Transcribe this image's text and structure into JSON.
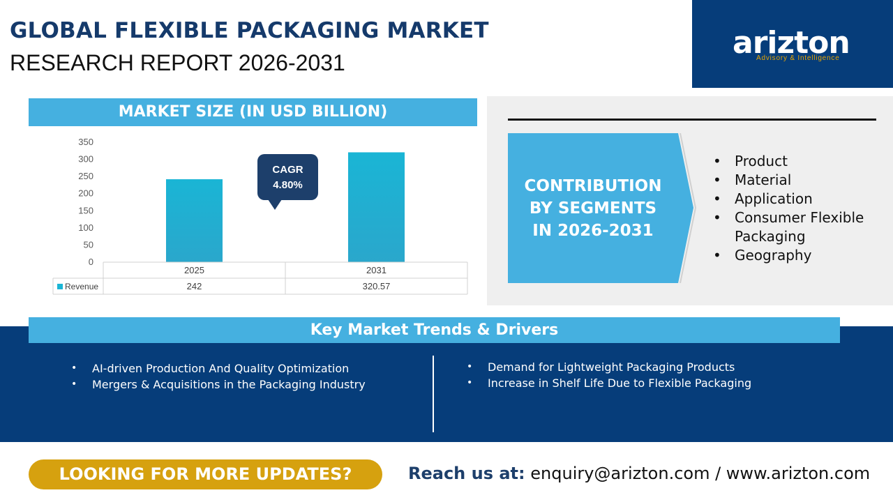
{
  "header": {
    "title_line1": "GLOBAL FLEXIBLE PACKAGING MARKET",
    "title_line2": "RESEARCH REPORT 2026-2031"
  },
  "logo": {
    "name": "arizton",
    "tagline": "Advisory & Intelligence"
  },
  "market_size": {
    "heading": "MARKET SIZE (IN USD BILLION)",
    "cagr_label": "CAGR",
    "cagr_value": "4.80%"
  },
  "chart_data": {
    "type": "bar",
    "categories": [
      "2025",
      "2031"
    ],
    "series": [
      {
        "name": "Revenue",
        "values": [
          242,
          320.57
        ],
        "value_labels": [
          "242",
          "320.57"
        ]
      }
    ],
    "ylim": [
      0,
      350
    ],
    "yticks": [
      "0",
      "50",
      "100",
      "150",
      "200",
      "250",
      "300",
      "350"
    ],
    "grid": false,
    "data_table": true,
    "bar_color": "#1ab5d5"
  },
  "segments": {
    "heading": "CONTRIBUTION BY SEGMENTS IN 2026-2031",
    "items": [
      "Product",
      "Material",
      "Application",
      "Consumer Flexible Packaging",
      "Geography"
    ]
  },
  "trends": {
    "heading": "Key Market Trends & Drivers",
    "left": [
      "AI-driven Production And Quality Optimization",
      "Mergers & Acquisitions in the Packaging Industry"
    ],
    "right": [
      "Demand for Lightweight Packaging Products",
      "Increase in Shelf Life Due to Flexible Packaging"
    ]
  },
  "footer": {
    "cta_label": "LOOKING FOR MORE UPDATES?",
    "reach_label": "Reach us at:",
    "contact": "enquiry@arizton.com / www.arizton.com"
  },
  "colors": {
    "navy": "#063d7a",
    "light_blue": "#45b0e0",
    "bar": "#1ab5d5",
    "gold": "#d6a10f"
  }
}
